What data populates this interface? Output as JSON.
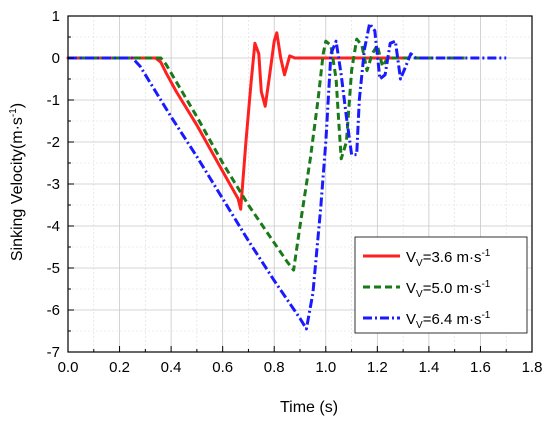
{
  "chart_data": {
    "type": "line",
    "xlabel": "Time (s)",
    "ylabel": {
      "main": "Sinking Velocity(m·s",
      "sup": "-1",
      "close": ")"
    },
    "xlim": [
      0.0,
      1.8
    ],
    "ylim": [
      -7,
      1
    ],
    "xticks": [
      "0.0",
      "0.2",
      "0.4",
      "0.6",
      "0.8",
      "1.0",
      "1.2",
      "1.4",
      "1.6",
      "1.8"
    ],
    "yticks": [
      "1",
      "0",
      "-1",
      "-2",
      "-3",
      "-4",
      "-5",
      "-6",
      "-7"
    ],
    "grid": true,
    "legend_position": "bottom-right",
    "series": [
      {
        "name": "V=3.6 m·s-1",
        "legend": {
          "v": "V",
          "sub": "V",
          "val": "=3.6 m·s",
          "sup": "-1"
        },
        "color": "#ff2020",
        "style": "solid",
        "points": [
          [
            0.0,
            0
          ],
          [
            0.34,
            0
          ],
          [
            0.36,
            -0.1
          ],
          [
            0.38,
            -0.35
          ],
          [
            0.42,
            -0.8
          ],
          [
            0.5,
            -1.6
          ],
          [
            0.6,
            -2.7
          ],
          [
            0.66,
            -3.35
          ],
          [
            0.67,
            -3.6
          ],
          [
            0.69,
            -2.0
          ],
          [
            0.71,
            -0.6
          ],
          [
            0.725,
            0.35
          ],
          [
            0.74,
            0.1
          ],
          [
            0.75,
            -0.8
          ],
          [
            0.765,
            -1.15
          ],
          [
            0.78,
            -0.5
          ],
          [
            0.8,
            0.4
          ],
          [
            0.81,
            0.6
          ],
          [
            0.825,
            0
          ],
          [
            0.84,
            -0.4
          ],
          [
            0.86,
            0.05
          ],
          [
            0.88,
            0
          ],
          [
            1.32,
            0
          ]
        ]
      },
      {
        "name": "V=5.0 m·s-1",
        "legend": {
          "v": "V",
          "sub": "V",
          "val": "=5.0 m·s",
          "sup": "-1"
        },
        "color": "#1a7a1a",
        "style": "dashed",
        "points": [
          [
            0.0,
            0
          ],
          [
            0.36,
            0
          ],
          [
            0.38,
            -0.15
          ],
          [
            0.5,
            -1.4
          ],
          [
            0.6,
            -2.5
          ],
          [
            0.7,
            -3.5
          ],
          [
            0.8,
            -4.4
          ],
          [
            0.85,
            -4.85
          ],
          [
            0.875,
            -5.05
          ],
          [
            0.9,
            -4.0
          ],
          [
            0.94,
            -2.4
          ],
          [
            0.97,
            -1.0
          ],
          [
            0.99,
            0.1
          ],
          [
            1.0,
            0.4
          ],
          [
            1.02,
            0.3
          ],
          [
            1.04,
            -0.5
          ],
          [
            1.05,
            -1.5
          ],
          [
            1.06,
            -2.4
          ],
          [
            1.08,
            -2.0
          ],
          [
            1.1,
            -0.3
          ],
          [
            1.12,
            0.45
          ],
          [
            1.14,
            0.3
          ],
          [
            1.16,
            -0.3
          ],
          [
            1.18,
            0.1
          ],
          [
            1.2,
            0.3
          ],
          [
            1.22,
            -0.2
          ],
          [
            1.24,
            0
          ],
          [
            1.4,
            0
          ],
          [
            1.55,
            0
          ]
        ]
      },
      {
        "name": "V=6.4 m·s-1",
        "legend": {
          "v": "V",
          "sub": "V",
          "val": "=6.4 m·s",
          "sup": "-1"
        },
        "color": "#1a1aff",
        "style": "dashdot",
        "points": [
          [
            0.0,
            0
          ],
          [
            0.25,
            0
          ],
          [
            0.28,
            -0.2
          ],
          [
            0.4,
            -1.4
          ],
          [
            0.5,
            -2.35
          ],
          [
            0.6,
            -3.35
          ],
          [
            0.7,
            -4.35
          ],
          [
            0.8,
            -5.3
          ],
          [
            0.9,
            -6.2
          ],
          [
            0.925,
            -6.45
          ],
          [
            0.95,
            -5.6
          ],
          [
            0.98,
            -3.6
          ],
          [
            1.0,
            -2.0
          ],
          [
            1.02,
            0.1
          ],
          [
            1.04,
            0.4
          ],
          [
            1.06,
            -0.4
          ],
          [
            1.08,
            -1.4
          ],
          [
            1.1,
            -2.3
          ],
          [
            1.12,
            -2.3
          ],
          [
            1.13,
            -1.0
          ],
          [
            1.15,
            0.2
          ],
          [
            1.17,
            0.82
          ],
          [
            1.19,
            0.65
          ],
          [
            1.21,
            -0.5
          ],
          [
            1.23,
            -0.4
          ],
          [
            1.25,
            0.35
          ],
          [
            1.27,
            0.4
          ],
          [
            1.29,
            -0.5
          ],
          [
            1.31,
            -0.2
          ],
          [
            1.33,
            0.1
          ],
          [
            1.35,
            0
          ],
          [
            1.5,
            0
          ],
          [
            1.7,
            0
          ]
        ]
      }
    ]
  }
}
